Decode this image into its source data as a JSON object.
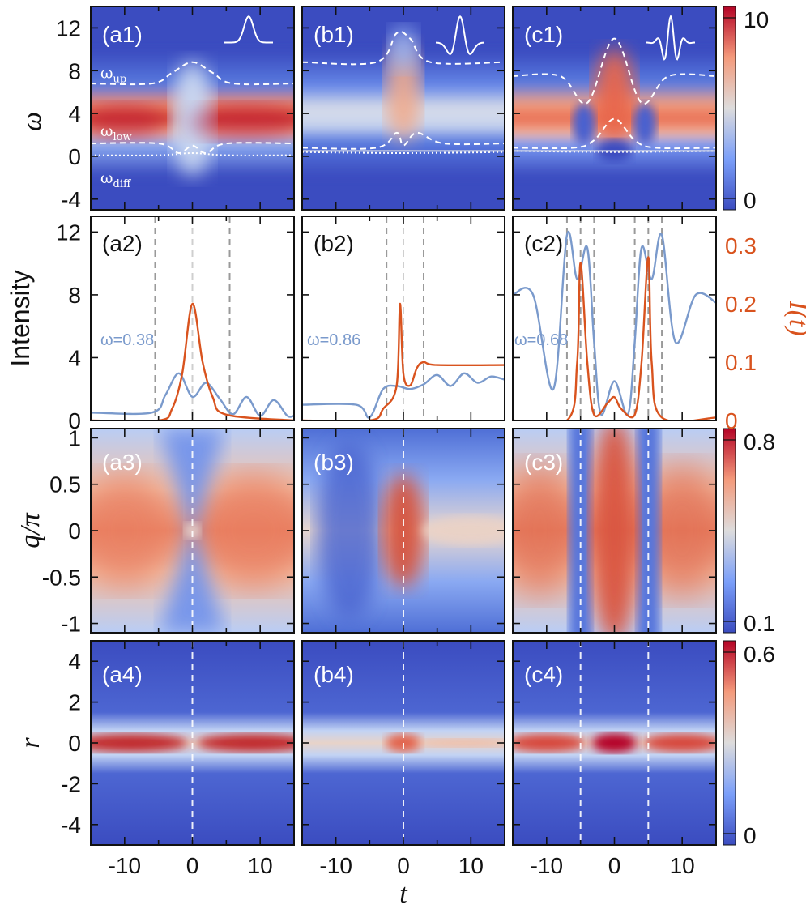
{
  "figure": {
    "colors": {
      "cool": "#3b4cc0",
      "mid": "#dddcdc",
      "warm": "#b40426",
      "blue_line": "#7a9acc",
      "orange_line": "#d9531e",
      "guide_white": "#ffffff",
      "guide_gray": "#9a9a9a"
    },
    "x_axis": {
      "label": "t",
      "tick_labels": [
        "-10",
        "0",
        "10"
      ],
      "xlim": [
        -15,
        15
      ]
    },
    "row_labels": {
      "r1": "ω",
      "r2": "Intensity",
      "r2_right": "I(t)",
      "r3": "q/π",
      "r4": "r"
    },
    "y_ticks": {
      "r1": [
        "12",
        "8",
        "4",
        "0",
        "-4"
      ],
      "r2_left": [
        "12",
        "8",
        "4",
        "0"
      ],
      "r2_right": [
        "0.3",
        "0.2",
        "0.1",
        "0"
      ],
      "r3": [
        "1",
        "0.5",
        "0",
        "-0.5",
        "-1"
      ],
      "r4": [
        "4",
        "2",
        "0",
        "-2",
        "-4"
      ]
    },
    "colorbars": [
      {
        "row": 1,
        "max": "10",
        "min": "0"
      },
      {
        "row": 3,
        "max": "0.8",
        "min": "0.1"
      },
      {
        "row": 4,
        "max": "0.6",
        "min": "0"
      }
    ],
    "panel_tags": [
      "(a1)",
      "(b1)",
      "(c1)",
      "(a2)",
      "(b2)",
      "(c2)",
      "(a3)",
      "(b3)",
      "(c3)",
      "(a4)",
      "(b4)",
      "(c4)"
    ],
    "omega_labels": {
      "up": "ω",
      "up_sub": "up",
      "low": "ω",
      "low_sub": "low",
      "diff": "ω",
      "diff_sub": "diff"
    },
    "omega_annotations": [
      "ω=0.38",
      "ω=0.86",
      "ω=0.68"
    ]
  },
  "chart_data": [
    {
      "type": "heatmap",
      "panel": "a1",
      "pulse": "gaussian",
      "xlim": [
        -15,
        15
      ],
      "ylim": [
        -5,
        14
      ],
      "clim": [
        0,
        10
      ],
      "omega_up": {
        "x": [
          -15,
          -6,
          -3,
          0,
          3,
          6,
          15
        ],
        "y": [
          6.8,
          6.8,
          7.8,
          8.8,
          7.8,
          6.8,
          6.8
        ]
      },
      "omega_low": {
        "x": [
          -15,
          -5,
          -2,
          0,
          2,
          5,
          15
        ],
        "y": [
          1.2,
          1.2,
          0.3,
          1.0,
          0.3,
          1.2,
          1.2
        ]
      },
      "omega_diff": {
        "x": [
          -15,
          -5,
          0,
          5,
          15
        ],
        "y": [
          0.1,
          0.1,
          0.3,
          0.1,
          0.1
        ]
      }
    },
    {
      "type": "heatmap",
      "panel": "b1",
      "pulse": "ricker",
      "xlim": [
        -15,
        15
      ],
      "ylim": [
        -5,
        14
      ],
      "clim": [
        0,
        10
      ],
      "omega_up": {
        "x": [
          -15,
          -4,
          -1,
          1,
          4,
          15
        ],
        "y": [
          8.8,
          8.8,
          11.5,
          11.0,
          8.8,
          8.8
        ]
      },
      "omega_low": {
        "x": [
          -15,
          -4,
          -1,
          0,
          2,
          6,
          15
        ],
        "y": [
          0.8,
          0.8,
          2.2,
          1.0,
          2.2,
          1.2,
          1.2
        ]
      },
      "omega_diff": {
        "x": [
          -15,
          0,
          15
        ],
        "y": [
          0.4,
          0.3,
          0.4
        ]
      }
    },
    {
      "type": "heatmap",
      "panel": "c1",
      "pulse": "oscillating",
      "xlim": [
        -15,
        15
      ],
      "ylim": [
        -5,
        14
      ],
      "clim": [
        0,
        10
      ],
      "omega_up": {
        "x": [
          -15,
          -8,
          -4,
          0,
          4,
          8,
          15
        ],
        "y": [
          7.5,
          7.5,
          5.0,
          11.0,
          5.0,
          7.5,
          7.5
        ]
      },
      "omega_low": {
        "x": [
          -15,
          -6,
          -3,
          0,
          3,
          6,
          15
        ],
        "y": [
          0.8,
          0.8,
          1.5,
          3.5,
          1.5,
          0.8,
          0.8
        ]
      },
      "omega_diff": {
        "x": [
          -15,
          0,
          15
        ],
        "y": [
          0.5,
          0.4,
          0.5
        ]
      }
    },
    {
      "type": "line",
      "panel": "a2",
      "xlim": [
        -15,
        15
      ],
      "ylim_left": [
        0,
        13
      ],
      "ylim_right": [
        0,
        0.35
      ],
      "series": [
        {
          "axis": "left",
          "x": [
            -15,
            -6,
            -4,
            -2,
            0,
            2,
            4,
            6,
            8,
            10,
            12,
            14,
            15
          ],
          "y": [
            0.5,
            0.5,
            1.6,
            3.0,
            1.5,
            2.4,
            1.4,
            0.4,
            1.5,
            0.3,
            1.3,
            0.3,
            0.3
          ]
        },
        {
          "axis": "right",
          "x": [
            -15,
            -5,
            -3,
            -1.5,
            0,
            1.5,
            3,
            5,
            15
          ],
          "y": [
            0,
            0,
            0.02,
            0.08,
            0.2,
            0.1,
            0.04,
            0.01,
            0.0
          ]
        }
      ],
      "guides": [
        -5.5,
        0,
        5.5
      ]
    },
    {
      "type": "line",
      "panel": "b2",
      "xlim": [
        -15,
        15
      ],
      "ylim_left": [
        0,
        13
      ],
      "ylim_right": [
        0,
        0.35
      ],
      "series": [
        {
          "axis": "left",
          "x": [
            -15,
            -7,
            -5,
            -3,
            -1,
            1,
            3,
            5,
            7,
            9,
            11,
            13,
            15
          ],
          "y": [
            1.0,
            1.0,
            0.2,
            2.0,
            2.2,
            2.0,
            2.3,
            2.9,
            2.2,
            3.0,
            2.4,
            2.8,
            2.6
          ]
        },
        {
          "axis": "right",
          "x": [
            -15,
            -5,
            -3,
            -1,
            -0.5,
            0,
            1,
            2,
            3,
            5,
            15
          ],
          "y": [
            0,
            0,
            0.02,
            0.06,
            0.2,
            0.08,
            0.06,
            0.09,
            0.1,
            0.095,
            0.095
          ]
        }
      ],
      "guides": [
        -2.5,
        0,
        3
      ]
    },
    {
      "type": "line",
      "panel": "c2",
      "xlim": [
        -15,
        15
      ],
      "ylim_left": [
        0,
        13
      ],
      "ylim_right": [
        0,
        0.35
      ],
      "series": [
        {
          "axis": "left",
          "x": [
            -15,
            -12,
            -9,
            -7,
            -5.5,
            -4,
            -3,
            -2,
            0,
            2,
            3,
            4,
            5.5,
            7,
            9,
            12,
            15
          ],
          "y": [
            8,
            8,
            2.0,
            11.8,
            9.0,
            11.0,
            5.0,
            0.4,
            2.5,
            0.4,
            5.0,
            11.0,
            9.0,
            11.8,
            5.0,
            8.0,
            7.5
          ]
        },
        {
          "axis": "right",
          "x": [
            -15,
            -7,
            -5.5,
            -5,
            -4,
            -3,
            -1,
            0,
            1,
            3,
            4,
            5,
            5.5,
            7,
            15
          ],
          "y": [
            0,
            0,
            0.1,
            0.27,
            0.1,
            0.01,
            0.03,
            0.04,
            0.02,
            0.01,
            0.1,
            0.28,
            0.1,
            0.005,
            0.005
          ]
        }
      ],
      "guides": [
        -7,
        -5,
        -3,
        3,
        5,
        7
      ]
    },
    {
      "type": "heatmap",
      "panel": "a3",
      "xlim": [
        -15,
        15
      ],
      "ylim": [
        -1.1,
        1.1
      ],
      "clim": [
        0.1,
        0.8
      ],
      "guides": [
        0
      ]
    },
    {
      "type": "heatmap",
      "panel": "b3",
      "xlim": [
        -15,
        15
      ],
      "ylim": [
        -1.1,
        1.1
      ],
      "clim": [
        0.1,
        0.8
      ],
      "guides": [
        0
      ]
    },
    {
      "type": "heatmap",
      "panel": "c3",
      "xlim": [
        -15,
        15
      ],
      "ylim": [
        -1.1,
        1.1
      ],
      "clim": [
        0.1,
        0.8
      ],
      "guides": [
        -5,
        5
      ]
    },
    {
      "type": "heatmap",
      "panel": "a4",
      "xlim": [
        -15,
        15
      ],
      "ylim": [
        -5,
        5
      ],
      "clim": [
        0,
        0.6
      ],
      "guides": [
        0
      ]
    },
    {
      "type": "heatmap",
      "panel": "b4",
      "xlim": [
        -15,
        15
      ],
      "ylim": [
        -5,
        5
      ],
      "clim": [
        0,
        0.6
      ],
      "guides": [
        0
      ]
    },
    {
      "type": "heatmap",
      "panel": "c4",
      "xlim": [
        -15,
        15
      ],
      "ylim": [
        -5,
        5
      ],
      "clim": [
        0,
        0.6
      ],
      "guides": [
        -5,
        5
      ]
    }
  ]
}
